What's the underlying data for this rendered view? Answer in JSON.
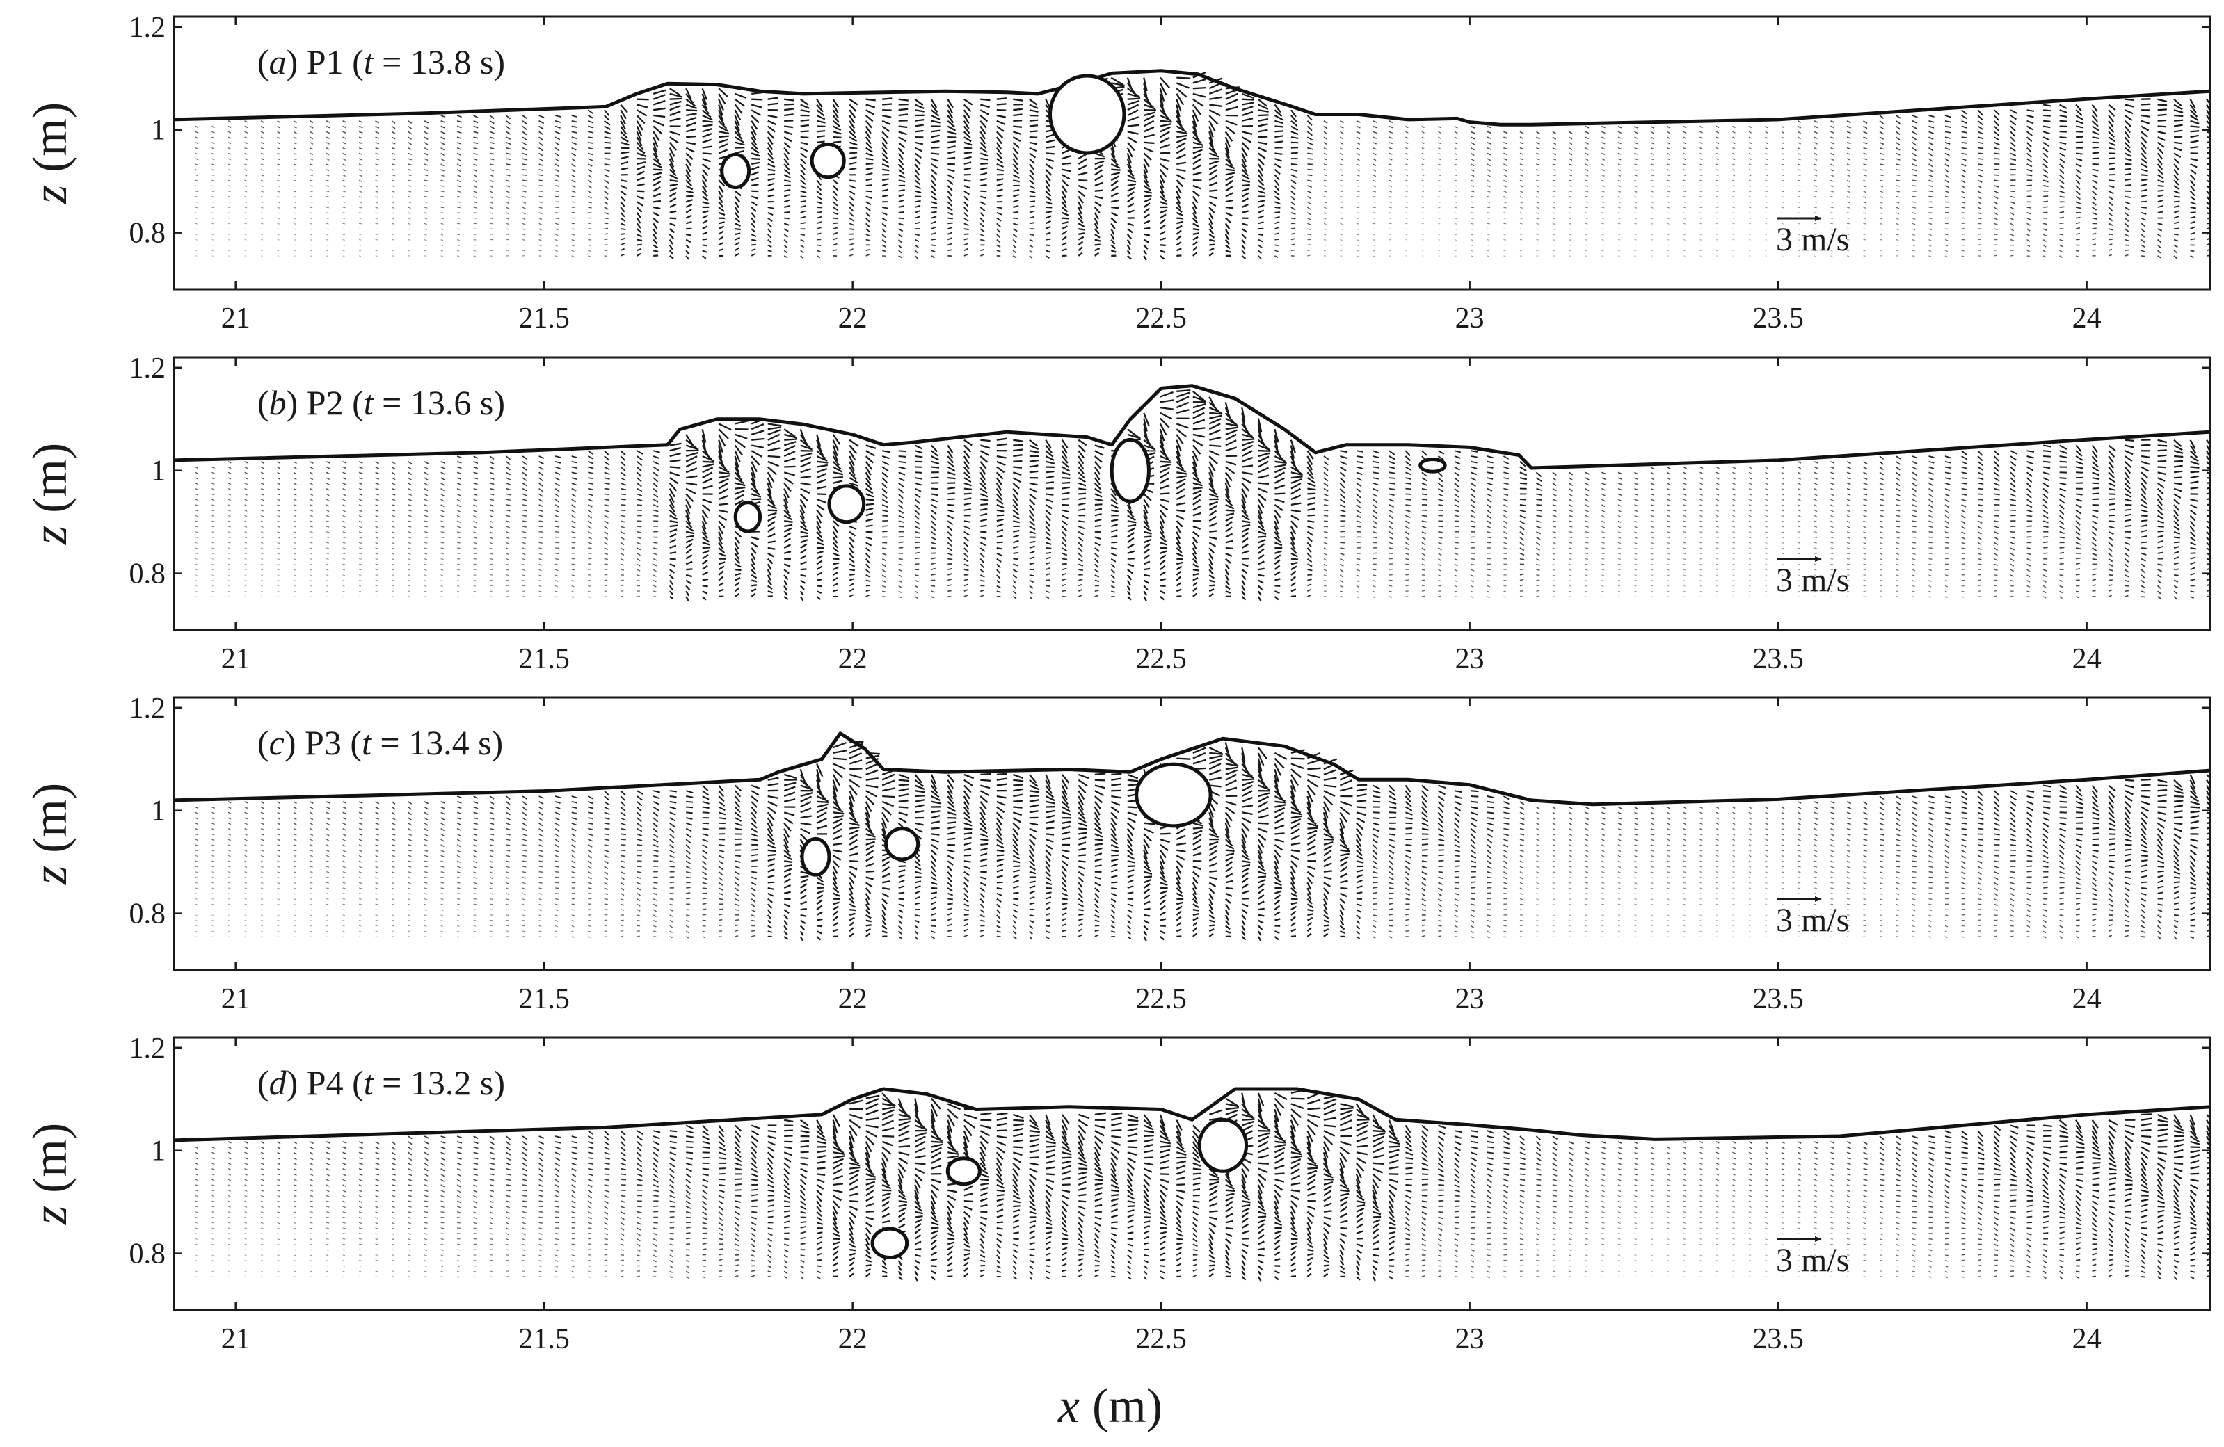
{
  "chart_data": {
    "type": "vector-field",
    "figure_xlabel": {
      "var": "x",
      "unit": "(m)"
    },
    "xlim": [
      20.9,
      24.2
    ],
    "ylim": [
      0.69,
      1.22
    ],
    "xticks": [
      21,
      21.5,
      22,
      22.5,
      23,
      23.5,
      24
    ],
    "xtick_labels": [
      "21",
      "21.5",
      "22",
      "22.5",
      "23",
      "23.5",
      "24"
    ],
    "yticks": [
      0.8,
      1,
      1.2
    ],
    "ytick_labels": [
      "0.8",
      "1",
      "1.2"
    ],
    "scale_arrow": {
      "label": "3 m/s",
      "value": 3
    },
    "panels": [
      {
        "letter": "a",
        "case": "P1",
        "t_text": "13.8 s",
        "ylabel": {
          "var": "z",
          "unit": "(m)"
        },
        "free_surface": [
          [
            20.9,
            1.02
          ],
          [
            21.3,
            1.032
          ],
          [
            21.6,
            1.045
          ],
          [
            21.65,
            1.07
          ],
          [
            21.7,
            1.09
          ],
          [
            21.78,
            1.088
          ],
          [
            21.85,
            1.075
          ],
          [
            21.92,
            1.07
          ],
          [
            22.0,
            1.072
          ],
          [
            22.15,
            1.075
          ],
          [
            22.25,
            1.073
          ],
          [
            22.3,
            1.07
          ],
          [
            22.35,
            1.085
          ],
          [
            22.42,
            1.11
          ],
          [
            22.5,
            1.115
          ],
          [
            22.56,
            1.108
          ],
          [
            22.62,
            1.08
          ],
          [
            22.7,
            1.05
          ],
          [
            22.75,
            1.03
          ],
          [
            22.82,
            1.03
          ],
          [
            22.9,
            1.02
          ],
          [
            22.98,
            1.022
          ],
          [
            23.0,
            1.015
          ],
          [
            23.05,
            1.01
          ],
          [
            23.1,
            1.01
          ],
          [
            23.5,
            1.02
          ],
          [
            24.0,
            1.06
          ],
          [
            24.2,
            1.075
          ]
        ],
        "blobs": [
          [
            21.81,
            0.92,
            0.022,
            0.032
          ],
          [
            21.96,
            0.94,
            0.026,
            0.032
          ],
          [
            22.38,
            1.03,
            0.06,
            0.075
          ]
        ]
      },
      {
        "letter": "b",
        "case": "P2",
        "t_text": "13.6 s",
        "ylabel": {
          "var": "z",
          "unit": "(m)"
        },
        "free_surface": [
          [
            20.9,
            1.02
          ],
          [
            21.4,
            1.035
          ],
          [
            21.7,
            1.05
          ],
          [
            21.72,
            1.08
          ],
          [
            21.78,
            1.1
          ],
          [
            21.85,
            1.1
          ],
          [
            21.92,
            1.09
          ],
          [
            22.0,
            1.07
          ],
          [
            22.05,
            1.05
          ],
          [
            22.1,
            1.055
          ],
          [
            22.25,
            1.075
          ],
          [
            22.38,
            1.065
          ],
          [
            22.42,
            1.05
          ],
          [
            22.45,
            1.1
          ],
          [
            22.5,
            1.16
          ],
          [
            22.55,
            1.165
          ],
          [
            22.62,
            1.14
          ],
          [
            22.7,
            1.08
          ],
          [
            22.75,
            1.035
          ],
          [
            22.8,
            1.05
          ],
          [
            22.9,
            1.05
          ],
          [
            23.0,
            1.045
          ],
          [
            23.08,
            1.03
          ],
          [
            23.1,
            1.005
          ],
          [
            23.5,
            1.02
          ],
          [
            24.0,
            1.06
          ],
          [
            24.2,
            1.075
          ]
        ],
        "blobs": [
          [
            21.83,
            0.91,
            0.02,
            0.028
          ],
          [
            21.99,
            0.935,
            0.028,
            0.035
          ],
          [
            22.45,
            1.0,
            0.03,
            0.06
          ],
          [
            22.94,
            1.01,
            0.02,
            0.012
          ]
        ]
      },
      {
        "letter": "c",
        "case": "P3",
        "t_text": "13.4 s",
        "ylabel": {
          "var": "z",
          "unit": "(m)"
        },
        "free_surface": [
          [
            20.9,
            1.02
          ],
          [
            21.5,
            1.038
          ],
          [
            21.85,
            1.06
          ],
          [
            21.88,
            1.075
          ],
          [
            21.95,
            1.1
          ],
          [
            21.98,
            1.15
          ],
          [
            22.02,
            1.12
          ],
          [
            22.05,
            1.08
          ],
          [
            22.15,
            1.075
          ],
          [
            22.35,
            1.08
          ],
          [
            22.45,
            1.075
          ],
          [
            22.5,
            1.1
          ],
          [
            22.6,
            1.14
          ],
          [
            22.7,
            1.125
          ],
          [
            22.78,
            1.09
          ],
          [
            22.82,
            1.06
          ],
          [
            22.9,
            1.06
          ],
          [
            23.0,
            1.05
          ],
          [
            23.1,
            1.02
          ],
          [
            23.2,
            1.012
          ],
          [
            23.5,
            1.022
          ],
          [
            24.0,
            1.06
          ],
          [
            24.2,
            1.078
          ]
        ],
        "blobs": [
          [
            21.94,
            0.91,
            0.022,
            0.035
          ],
          [
            22.08,
            0.935,
            0.026,
            0.03
          ],
          [
            22.52,
            1.03,
            0.06,
            0.06
          ]
        ]
      },
      {
        "letter": "d",
        "case": "P4",
        "t_text": "13.2 s",
        "ylabel": {
          "var": "z",
          "unit": "(m)"
        },
        "free_surface": [
          [
            20.9,
            1.02
          ],
          [
            21.6,
            1.045
          ],
          [
            21.95,
            1.07
          ],
          [
            22.0,
            1.1
          ],
          [
            22.05,
            1.12
          ],
          [
            22.12,
            1.11
          ],
          [
            22.2,
            1.08
          ],
          [
            22.35,
            1.085
          ],
          [
            22.5,
            1.08
          ],
          [
            22.55,
            1.06
          ],
          [
            22.62,
            1.12
          ],
          [
            22.72,
            1.12
          ],
          [
            22.82,
            1.1
          ],
          [
            22.88,
            1.06
          ],
          [
            23.0,
            1.05
          ],
          [
            23.1,
            1.04
          ],
          [
            23.18,
            1.03
          ],
          [
            23.3,
            1.022
          ],
          [
            23.6,
            1.028
          ],
          [
            24.0,
            1.07
          ],
          [
            24.2,
            1.085
          ]
        ],
        "blobs": [
          [
            22.06,
            0.82,
            0.028,
            0.028
          ],
          [
            22.18,
            0.96,
            0.026,
            0.025
          ],
          [
            22.6,
            1.01,
            0.038,
            0.05
          ]
        ]
      }
    ]
  }
}
